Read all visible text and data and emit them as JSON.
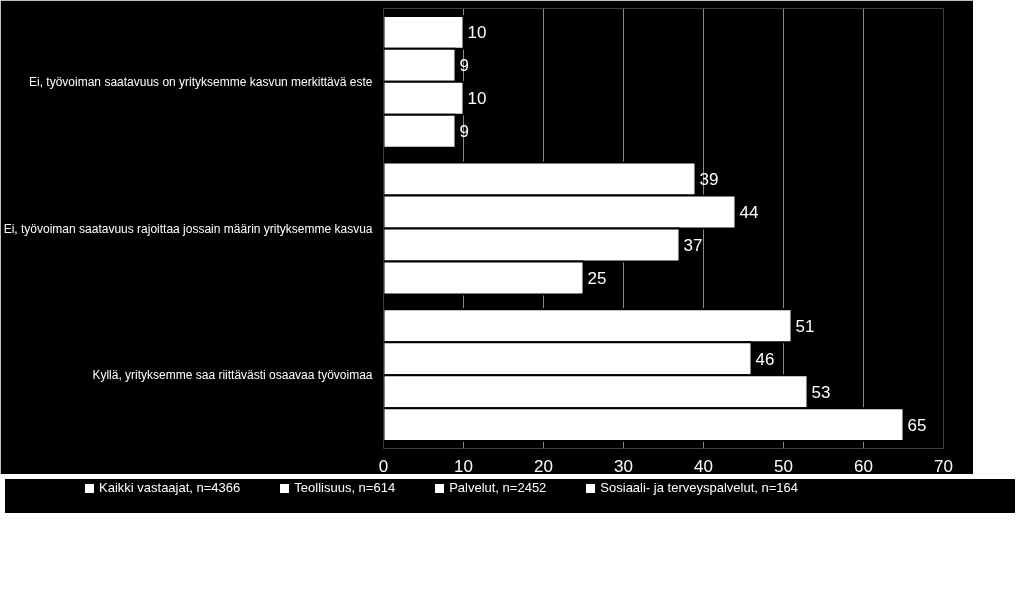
{
  "chart_data": {
    "type": "bar",
    "orientation": "horizontal",
    "categories": [
      "Ei, työvoiman saatavuus on yrityksemme kasvun merkittävä este",
      "Ei, työvoiman saatavuus rajoittaa jossain määrin yrityksemme kasvua",
      "Kyllä, yrityksemme saa riittävästi osaavaa työvoimaa"
    ],
    "series": [
      {
        "name": "Kaikki vastaajat, n=4366",
        "color": "#ffffff",
        "values": [
          10,
          39,
          51
        ]
      },
      {
        "name": "Teollisuus, n=614",
        "color": "#ffffff",
        "values": [
          9,
          44,
          46
        ]
      },
      {
        "name": "Palvelut, n=2452",
        "color": "#ffffff",
        "values": [
          10,
          37,
          53
        ]
      },
      {
        "name": "Sosiaali- ja terveyspalvelut, n=164",
        "color": "#ffffff",
        "values": [
          9,
          25,
          65
        ]
      }
    ],
    "xlim": [
      0,
      70
    ],
    "xticks": [
      0,
      10,
      20,
      30,
      40,
      50,
      60,
      70
    ],
    "grid": "x",
    "legend": "bottom",
    "data_labels": true
  }
}
